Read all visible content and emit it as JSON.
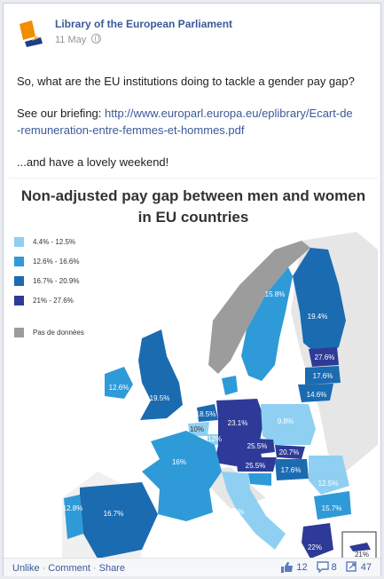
{
  "post": {
    "author": "Library of the European Parliament",
    "date": "11 May",
    "line1": "So, what are the EU institutions doing to tackle a gender pay gap?",
    "line2_prefix": "See our briefing: ",
    "link_part1": "http://www.europarl.europa.eu/eplibrary/Ecart-de",
    "link_part2": "-remuneration-entre-femmes-et-hommes.pdf",
    "line3": "...and have a lovely weekend!"
  },
  "image": {
    "title_line1": "Non-adjusted pay gap between men and women",
    "title_line2": "in EU countries",
    "legend": [
      {
        "label": "4.4% - 12.5%",
        "color": "#8fd0f2"
      },
      {
        "label": "12.6% - 16.6%",
        "color": "#2f9ad8"
      },
      {
        "label": "16.7% - 20.9%",
        "color": "#1b6bb1"
      },
      {
        "label": "21% - 27.6%",
        "color": "#2e3a97"
      },
      {
        "label": "Pas de données",
        "color": "#9c9c9c"
      }
    ],
    "labels": {
      "sweden": "15.8%",
      "finland": "19.4%",
      "estonia": "27.6%",
      "latvia": "17.6%",
      "lithuania": "14.6%",
      "ireland": "12.6%",
      "uk": "19.5%",
      "netherlands": "18.5%",
      "belgium": "10%",
      "luxembourg": "12%",
      "germany": "23.1%",
      "poland": "9.8%",
      "czechia": "25.5%",
      "slovakia": "20.7%",
      "austria": "25.5%",
      "hungary": "17.6%",
      "france": "16%",
      "romania": "12.5%",
      "bulgaria": "15.7%",
      "portugal": "12.8%",
      "spain": "16.7%",
      "italy": "5.5%",
      "greece": "22%",
      "cyprus": "21%"
    }
  },
  "footer": {
    "unlike": "Unlike",
    "comment": "Comment",
    "share": "Share",
    "likes": "12",
    "comments": "8",
    "shares": "47",
    "dot": "·"
  }
}
